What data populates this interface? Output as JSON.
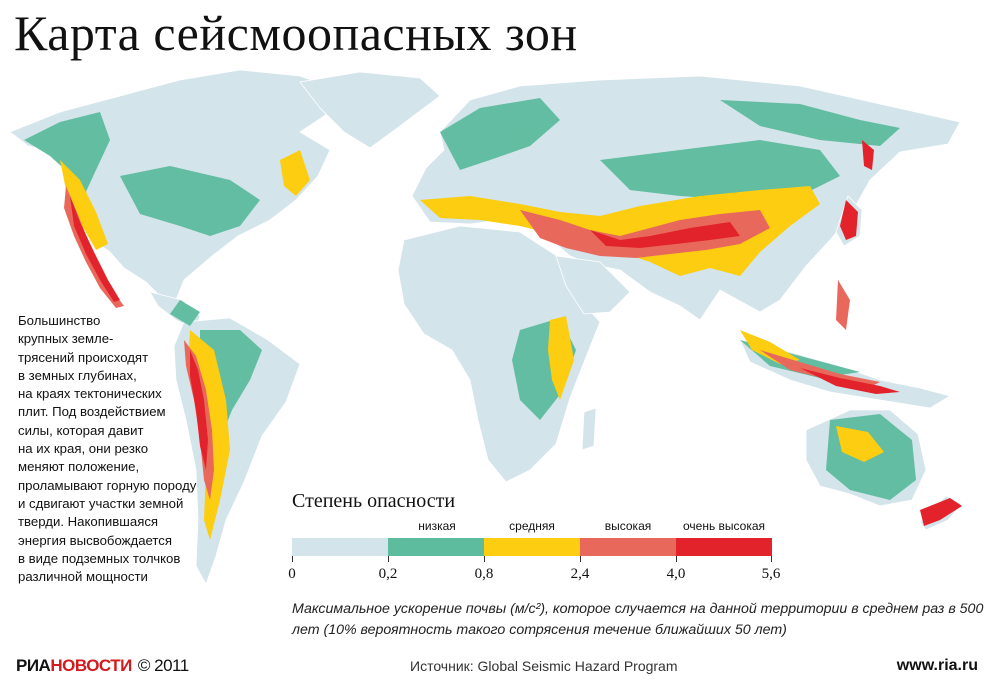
{
  "title": "Карта сейсмоопасных зон",
  "side_text": [
    "Большинство",
    "крупных земле-",
    "трясений происходят",
    "в земных глубинах,",
    "на краях тектонических",
    "плит. Под воздействием",
    "силы, которая давит",
    "на их края, они резко",
    "меняют положение,",
    "проламывают горную породу",
    "и сдвигают участки земной",
    "тверди. Накопившаяся",
    "энергия высвобождается",
    "в виде подземных толчков",
    "различной мощности"
  ],
  "legend": {
    "title": "Степень опасности",
    "levels": [
      {
        "label": "",
        "color": "#d3e4ea",
        "from": 0,
        "to": 0.2
      },
      {
        "label": "низкая",
        "color": "#5dbb9e",
        "from": 0.2,
        "to": 0.8
      },
      {
        "label": "средняя",
        "color": "#fccd10",
        "from": 0.8,
        "to": 2.4
      },
      {
        "label": "высокая",
        "color": "#e8695c",
        "from": 2.4,
        "to": 4.0
      },
      {
        "label": "очень высокая",
        "color": "#e3232c",
        "from": 4.0,
        "to": 5.6
      }
    ],
    "ticks": [
      "0",
      "0,2",
      "0,8",
      "2,4",
      "4,0",
      "5,6"
    ]
  },
  "caption": "Максимальное ускорение почвы (м/с²), которое случается на данной территории в среднем раз в 500 лет (10% вероятность такого сотрясения течение ближайших 50 лет)",
  "footer": {
    "logo_part1": "РИА",
    "logo_part2": "НОВОСТИ",
    "copyright": "© 2011",
    "source": "Источник: Global Seismic  Hazard Program",
    "url": "www.ria.ru"
  },
  "colors": {
    "ocean": "#ffffff",
    "land_low": "#d3e4ea",
    "low": "#5dbb9e",
    "medium": "#fccd10",
    "high": "#e8695c",
    "very_high": "#e3232c"
  }
}
